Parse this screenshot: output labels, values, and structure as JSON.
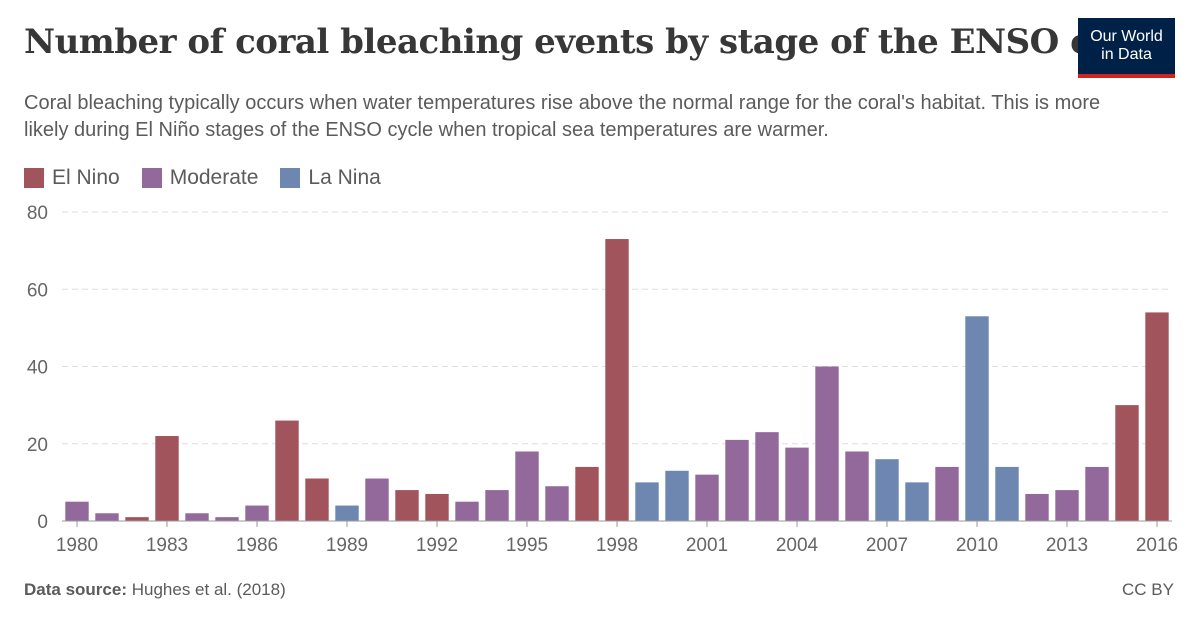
{
  "header": {
    "title": "Number of coral bleaching events by stage of the ENSO cycle",
    "subtitle": "Coral bleaching typically occurs when water temperatures rise above the normal range for the coral's habitat. This is more likely during El Niño stages of the ENSO cycle when tropical sea temperatures are warmer.",
    "logo_line1": "Our World",
    "logo_line2": "in Data"
  },
  "footer": {
    "source_label": "Data source:",
    "source_text": "Hughes et al. (2018)",
    "license": "CC BY"
  },
  "colors": {
    "El Nino": "#a2545c",
    "Moderate": "#93699b",
    "La Nina": "#6d87b1",
    "grid": "#dddddd",
    "axis": "#5b5b5b"
  },
  "chart_data": {
    "type": "bar",
    "title": "Number of coral bleaching events by stage of the ENSO cycle",
    "xlabel": "",
    "ylabel": "",
    "ylim": [
      0,
      80
    ],
    "yticks": [
      0,
      20,
      40,
      60,
      80
    ],
    "xticks": [
      1980,
      1983,
      1986,
      1989,
      1992,
      1995,
      1998,
      2001,
      2004,
      2007,
      2010,
      2013,
      2016
    ],
    "grid": true,
    "legend_position": "top-left",
    "legend": [
      "El Nino",
      "Moderate",
      "La Nina"
    ],
    "categories": [
      1980,
      1981,
      1982,
      1983,
      1984,
      1985,
      1986,
      1987,
      1988,
      1989,
      1990,
      1991,
      1992,
      1993,
      1994,
      1995,
      1996,
      1997,
      1998,
      1999,
      2000,
      2001,
      2002,
      2003,
      2004,
      2005,
      2006,
      2007,
      2008,
      2009,
      2010,
      2011,
      2012,
      2013,
      2014,
      2015,
      2016
    ],
    "values": [
      5,
      2,
      1,
      22,
      2,
      1,
      4,
      26,
      11,
      4,
      11,
      8,
      7,
      5,
      8,
      18,
      9,
      14,
      73,
      10,
      13,
      12,
      21,
      23,
      19,
      40,
      18,
      16,
      10,
      14,
      53,
      14,
      7,
      8,
      14,
      30,
      54
    ],
    "stages": [
      "Moderate",
      "Moderate",
      "El Nino",
      "El Nino",
      "Moderate",
      "Moderate",
      "Moderate",
      "El Nino",
      "El Nino",
      "La Nina",
      "Moderate",
      "El Nino",
      "El Nino",
      "Moderate",
      "Moderate",
      "Moderate",
      "Moderate",
      "El Nino",
      "El Nino",
      "La Nina",
      "La Nina",
      "Moderate",
      "Moderate",
      "Moderate",
      "Moderate",
      "Moderate",
      "Moderate",
      "La Nina",
      "La Nina",
      "Moderate",
      "La Nina",
      "La Nina",
      "Moderate",
      "Moderate",
      "Moderate",
      "El Nino",
      "El Nino"
    ]
  }
}
